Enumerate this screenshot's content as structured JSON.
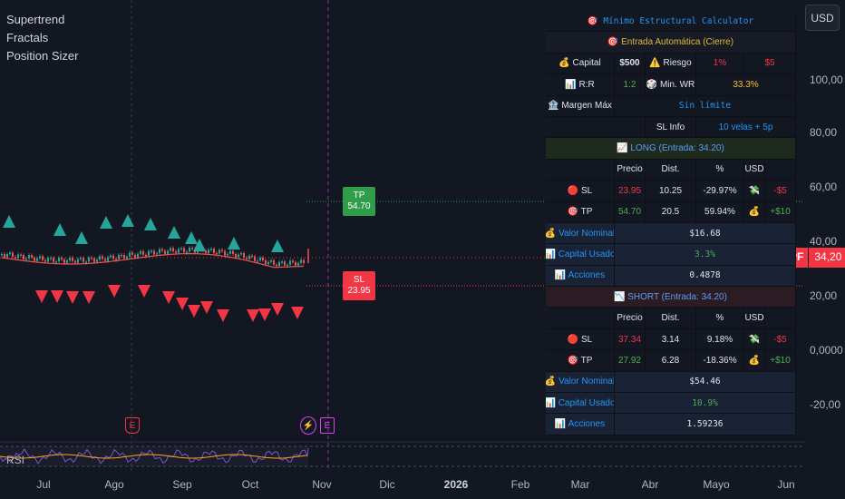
{
  "legend": [
    "Supertrend",
    "Fractals",
    "Position Sizer"
  ],
  "currency_button": "USD",
  "y_axis_ticks": [
    "100,00",
    "80,00",
    "60,00",
    "40,00",
    "20,00",
    "0,0000",
    "-20,00"
  ],
  "x_axis_ticks": [
    {
      "label": "Jul",
      "bold": false
    },
    {
      "label": "Ago",
      "bold": false
    },
    {
      "label": "Sep",
      "bold": false
    },
    {
      "label": "Oct",
      "bold": false
    },
    {
      "label": "Nov",
      "bold": false
    },
    {
      "label": "Dic",
      "bold": false
    },
    {
      "label": "2026",
      "bold": true
    },
    {
      "label": "Feb",
      "bold": false
    },
    {
      "label": "Mar",
      "bold": false
    },
    {
      "label": "Abr",
      "bold": false
    },
    {
      "label": "Mayo",
      "bold": false
    },
    {
      "label": "Jun",
      "bold": false
    }
  ],
  "symbol_tag": {
    "ticker": "YPF",
    "price": "34,20"
  },
  "tp_label": {
    "title": "TP",
    "value": "54.70"
  },
  "sl_label": {
    "title": "SL",
    "value": "23.95"
  },
  "rsi_label": "RSI",
  "events": {
    "earnings_1": "E",
    "earnings_2": "E",
    "split": "⚡"
  },
  "colors": {
    "bull_arrow": "#26a69a",
    "bear_arrow": "#f23645",
    "price_line": "#f23645",
    "rsi_line": "#f9a825",
    "background": "#131722"
  },
  "table": {
    "title": "🎯 Mínimo Estructural Calculator",
    "subtitle": "🎯 Entrada Automática (Cierre)",
    "capital_label": "💰 Capital",
    "capital_value": "$500",
    "riesgo_label": "⚠️ Riesgo",
    "riesgo_pct": "1%",
    "riesgo_amt": "$5",
    "rr_label": "📊 R:R",
    "rr_value": "1:2",
    "minwr_label": "🎲 Min. WR",
    "minwr_value": "33.3%",
    "margen_label": "🏦 Margen Máx",
    "margen_value": "Sin límite",
    "slinfo_label": "SL Info",
    "slinfo_value": "10 velas + 5p",
    "long_header": "📈 LONG (Entrada: 34.20)",
    "short_header": "📉 SHORT (Entrada: 34.20)",
    "col_headers": [
      "Precio",
      "Dist.",
      "%",
      "USD"
    ],
    "long_rows": [
      {
        "label": "🔴 SL",
        "precio": "23.95",
        "dist": "10.25",
        "pct": "-29.97%",
        "icon": "💸",
        "usd": "-$5"
      },
      {
        "label": "🎯 TP",
        "precio": "54.70",
        "dist": "20.5",
        "pct": "59.94%",
        "icon": "💰",
        "usd": "+$10"
      }
    ],
    "long_stats": [
      {
        "label": "💰 Valor Nominal",
        "value": "$16.68"
      },
      {
        "label": "📊 Capital Usado",
        "value": "3.3%"
      },
      {
        "label": "📊 Acciones",
        "value": "0.4878"
      }
    ],
    "short_rows": [
      {
        "label": "🔴 SL",
        "precio": "37.34",
        "dist": "3.14",
        "pct": "9.18%",
        "icon": "💸",
        "usd": "-$5"
      },
      {
        "label": "🎯 TP",
        "precio": "27.92",
        "dist": "6.28",
        "pct": "-18.36%",
        "icon": "💰",
        "usd": "+$10"
      }
    ],
    "short_stats": [
      {
        "label": "💰 Valor Nominal",
        "value": "$54.46"
      },
      {
        "label": "📊 Capital Usado",
        "value": "10.9%"
      },
      {
        "label": "📊 Acciones",
        "value": "1.59236"
      }
    ]
  }
}
